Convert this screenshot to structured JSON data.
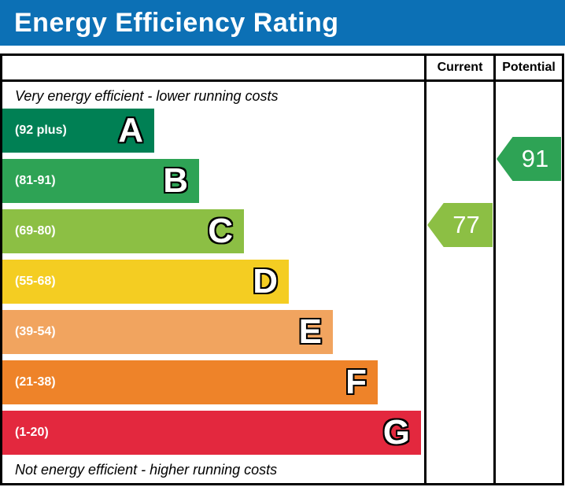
{
  "title": "Energy Efficiency Rating",
  "table": {
    "current_header": "Current",
    "potential_header": "Potential"
  },
  "notes": {
    "top": "Very energy efficient - lower running costs",
    "bottom": "Not energy efficient - higher running costs"
  },
  "bands": [
    {
      "letter": "A",
      "range": "(92 plus)",
      "color": "#008054"
    },
    {
      "letter": "B",
      "range": "(81-91)",
      "color": "#2ea355"
    },
    {
      "letter": "C",
      "range": "(69-80)",
      "color": "#8cbf44"
    },
    {
      "letter": "D",
      "range": "(55-68)",
      "color": "#f4cd22"
    },
    {
      "letter": "E",
      "range": "(39-54)",
      "color": "#f1a45f"
    },
    {
      "letter": "F",
      "range": "(21-38)",
      "color": "#ee8329"
    },
    {
      "letter": "G",
      "range": "(1-20)",
      "color": "#e3283e"
    }
  ],
  "ratings": {
    "current": {
      "value": "77",
      "band": "C",
      "color": "#8cbf44"
    },
    "potential": {
      "value": "91",
      "band": "B",
      "color": "#2ea355"
    }
  },
  "colors": {
    "title_bg": "#0c70b5",
    "title_text": "#ffffff",
    "border": "#000000"
  },
  "chart_data": {
    "type": "bar",
    "title": "Energy Efficiency Rating",
    "categories": [
      "A",
      "B",
      "C",
      "D",
      "E",
      "F",
      "G"
    ],
    "band_ranges": [
      "92 plus",
      "81-91",
      "69-80",
      "55-68",
      "39-54",
      "21-38",
      "1-20"
    ],
    "band_colors": [
      "#008054",
      "#2ea355",
      "#8cbf44",
      "#f4cd22",
      "#f1a45f",
      "#ee8329",
      "#e3283e"
    ],
    "bar_relative_lengths": [
      0.36,
      0.47,
      0.57,
      0.68,
      0.78,
      0.89,
      0.99
    ],
    "series": [
      {
        "name": "Current",
        "value": 77,
        "band": "C"
      },
      {
        "name": "Potential",
        "value": 91,
        "band": "B"
      }
    ],
    "scale_min": 1,
    "scale_max": 100,
    "legend_position": "none",
    "annotations": [
      "Very energy efficient - lower running costs",
      "Not energy efficient - higher running costs"
    ]
  }
}
